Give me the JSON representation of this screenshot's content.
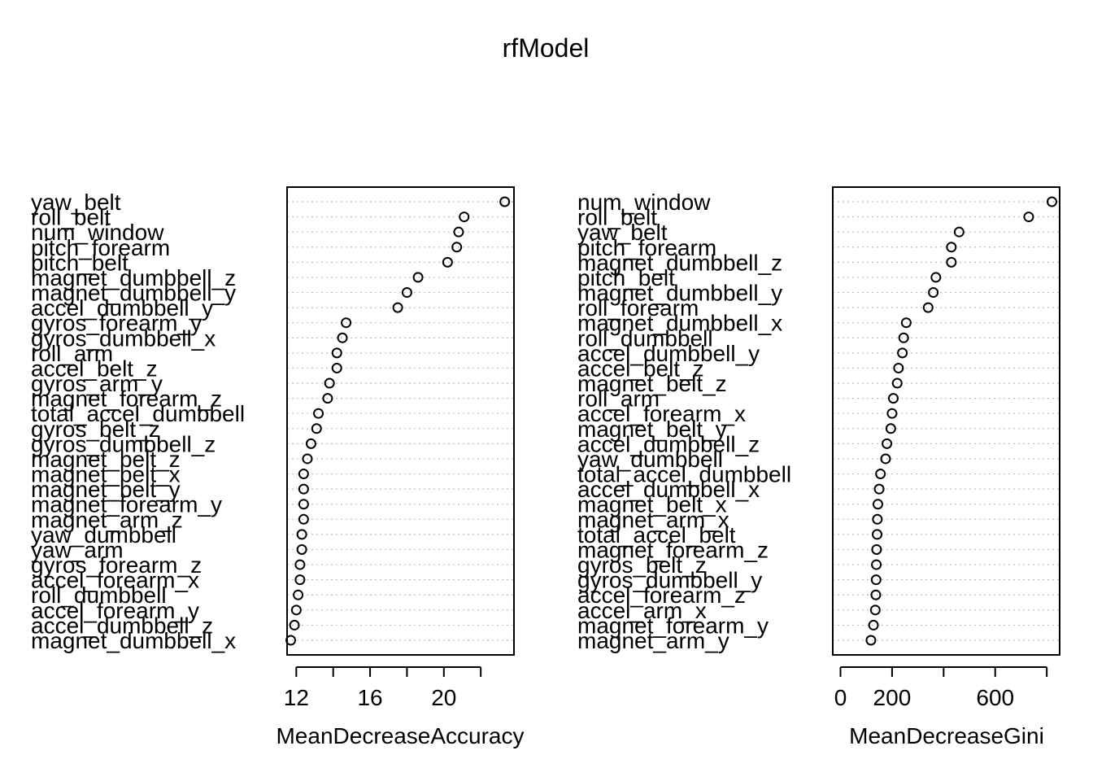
{
  "title": "rfModel",
  "chart_data": [
    {
      "type": "scatter",
      "subtype": "dotchart",
      "xlabel": "MeanDecreaseAccuracy",
      "ylabel": "",
      "xlim": [
        11.5,
        23.8
      ],
      "xticks": [
        12,
        14,
        16,
        18,
        20,
        22
      ],
      "xtick_labels": [
        "12",
        "",
        "16",
        "",
        "20",
        ""
      ],
      "grid": "dotted horizontal",
      "categories": [
        "yaw_belt",
        "roll_belt",
        "num_window",
        "pitch_forearm",
        "pitch_belt",
        "magnet_dumbbell_z",
        "magnet_dumbbell_y",
        "accel_dumbbell_y",
        "gyros_forearm_y",
        "gyros_dumbbell_x",
        "roll_arm",
        "accel_belt_z",
        "gyros_arm_y",
        "magnet_forearm_z",
        "total_accel_dumbbell",
        "gyros_belt_z",
        "gyros_dumbbell_z",
        "magnet_belt_z",
        "magnet_belt_x",
        "magnet_belt_y",
        "magnet_forearm_y",
        "magnet_arm_z",
        "yaw_dumbbell",
        "yaw_arm",
        "gyros_forearm_z",
        "accel_forearm_x",
        "roll_dumbbell",
        "accel_forearm_y",
        "accel_dumbbell_z",
        "magnet_dumbbell_x"
      ],
      "values": [
        23.3,
        21.1,
        20.8,
        20.7,
        20.2,
        18.6,
        18.0,
        17.5,
        14.7,
        14.5,
        14.2,
        14.2,
        13.8,
        13.7,
        13.2,
        13.1,
        12.8,
        12.6,
        12.4,
        12.4,
        12.4,
        12.4,
        12.3,
        12.3,
        12.2,
        12.2,
        12.1,
        12.0,
        11.9,
        11.7
      ]
    },
    {
      "type": "scatter",
      "subtype": "dotchart",
      "xlabel": "MeanDecreaseGini",
      "ylabel": "",
      "xlim": [
        -30,
        850
      ],
      "xticks": [
        0,
        200,
        400,
        600,
        800
      ],
      "xtick_labels": [
        "0",
        "200",
        "",
        "600",
        ""
      ],
      "grid": "dotted horizontal",
      "categories": [
        "num_window",
        "roll_belt",
        "yaw_belt",
        "pitch_forearm",
        "magnet_dumbbell_z",
        "pitch_belt",
        "magnet_dumbbell_y",
        "roll_forearm",
        "magnet_dumbbell_x",
        "roll_dumbbell",
        "accel_dumbbell_y",
        "accel_belt_z",
        "magnet_belt_z",
        "roll_arm",
        "accel_forearm_x",
        "magnet_belt_y",
        "accel_dumbbell_z",
        "yaw_dumbbell",
        "total_accel_dumbbell",
        "accel_dumbbell_x",
        "magnet_belt_x",
        "magnet_arm_x",
        "total_accel_belt",
        "magnet_forearm_z",
        "gyros_belt_z",
        "gyros_dumbbell_y",
        "accel_forearm_z",
        "accel_arm_x",
        "magnet_forearm_y",
        "magnet_arm_y"
      ],
      "values": [
        820,
        730,
        460,
        430,
        430,
        370,
        360,
        340,
        255,
        245,
        240,
        225,
        220,
        205,
        200,
        195,
        180,
        175,
        155,
        150,
        145,
        143,
        142,
        140,
        139,
        138,
        137,
        135,
        128,
        118
      ]
    }
  ]
}
